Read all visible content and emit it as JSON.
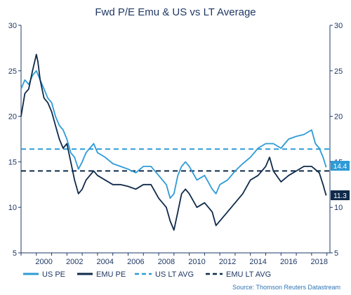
{
  "chart_data": {
    "type": "line",
    "title": "Fwd P/E Emu & US vs LT Average",
    "source": "Source: Thomson Reuters Datastream",
    "ylim": [
      5,
      30
    ],
    "y_ticks": [
      "5",
      "10",
      "15",
      "20",
      "25",
      "30"
    ],
    "xlim": [
      1999.0,
      2019.2
    ],
    "x_ticks": [
      "2000",
      "2002",
      "2004",
      "2006",
      "2008",
      "2010",
      "2012",
      "2014",
      "2016",
      "2018"
    ],
    "grid": false,
    "legend_position": "bottom",
    "end_labels": [
      "14.4",
      "11.3"
    ],
    "colors": {
      "us_pe": "#2e9bd6",
      "emu_pe": "#0f2a4a",
      "us_lt_avg": "#2e9bd6",
      "emu_lt_avg": "#0f2a4a",
      "axis": "#1f3864"
    },
    "series": [
      {
        "name": "US PE",
        "style": "solid",
        "x": [
          1999.0,
          1999.25,
          1999.5,
          1999.75,
          2000.0,
          2000.25,
          2000.5,
          2000.75,
          2001.0,
          2001.25,
          2001.5,
          2001.75,
          2002.0,
          2002.25,
          2002.5,
          2002.75,
          2003.0,
          2003.25,
          2003.5,
          2003.75,
          2004.0,
          2004.5,
          2005.0,
          2005.5,
          2006.0,
          2006.5,
          2007.0,
          2007.5,
          2008.0,
          2008.5,
          2008.75,
          2009.0,
          2009.25,
          2009.5,
          2009.75,
          2010.0,
          2010.5,
          2011.0,
          2011.5,
          2011.75,
          2012.0,
          2012.5,
          2013.0,
          2013.5,
          2014.0,
          2014.5,
          2015.0,
          2015.5,
          2016.0,
          2016.5,
          2017.0,
          2017.5,
          2018.0,
          2018.25,
          2018.5,
          2018.75,
          2018.95
        ],
        "values": [
          23.0,
          24.0,
          23.5,
          24.5,
          25.0,
          24.0,
          23.0,
          22.0,
          21.5,
          20.0,
          19.0,
          18.5,
          17.5,
          16.0,
          15.5,
          14.2,
          15.0,
          16.0,
          16.5,
          17.0,
          16.0,
          15.5,
          14.8,
          14.5,
          14.2,
          13.8,
          14.5,
          14.5,
          13.5,
          12.5,
          11.0,
          11.5,
          13.5,
          14.5,
          15.0,
          14.5,
          13.0,
          13.5,
          12.0,
          11.5,
          12.5,
          13.0,
          14.0,
          14.8,
          15.5,
          16.5,
          17.0,
          17.0,
          16.5,
          17.5,
          17.8,
          18.0,
          18.5,
          17.0,
          16.5,
          15.5,
          14.4
        ]
      },
      {
        "name": "EMU PE",
        "style": "solid",
        "x": [
          1999.0,
          1999.25,
          1999.5,
          1999.75,
          2000.0,
          2000.1,
          2000.25,
          2000.5,
          2000.75,
          2001.0,
          2001.25,
          2001.5,
          2001.75,
          2002.0,
          2002.25,
          2002.5,
          2002.75,
          2003.0,
          2003.25,
          2003.5,
          2003.75,
          2004.0,
          2004.5,
          2005.0,
          2005.5,
          2006.0,
          2006.5,
          2007.0,
          2007.5,
          2008.0,
          2008.5,
          2008.75,
          2009.0,
          2009.25,
          2009.5,
          2009.75,
          2010.0,
          2010.5,
          2011.0,
          2011.5,
          2011.75,
          2012.0,
          2012.5,
          2013.0,
          2013.5,
          2014.0,
          2014.5,
          2015.0,
          2015.25,
          2015.5,
          2016.0,
          2016.5,
          2017.0,
          2017.5,
          2018.0,
          2018.5,
          2018.75,
          2018.95
        ],
        "values": [
          20.0,
          22.5,
          23.0,
          25.0,
          26.8,
          26.0,
          24.0,
          22.0,
          21.5,
          20.5,
          19.0,
          17.5,
          16.5,
          17.0,
          15.0,
          13.0,
          11.5,
          12.0,
          13.0,
          13.5,
          14.0,
          13.5,
          13.0,
          12.5,
          12.5,
          12.3,
          12.0,
          12.5,
          12.5,
          11.0,
          10.0,
          8.5,
          7.5,
          9.5,
          11.5,
          12.0,
          11.5,
          10.0,
          10.5,
          9.5,
          8.0,
          8.5,
          9.5,
          10.5,
          11.5,
          13.0,
          13.5,
          14.5,
          15.5,
          14.0,
          12.8,
          13.5,
          14.0,
          14.5,
          14.5,
          13.8,
          12.5,
          11.3
        ]
      },
      {
        "name": "US LT AVG",
        "style": "dashed",
        "value": 16.4
      },
      {
        "name": "EMU LT AVG",
        "style": "dashed",
        "value": 14.0
      }
    ]
  }
}
